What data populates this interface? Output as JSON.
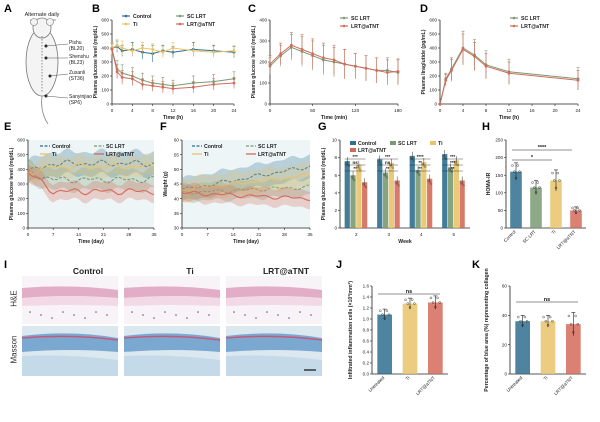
{
  "panels": {
    "A": "A",
    "B": "B",
    "C": "C",
    "D": "D",
    "E": "E",
    "F": "F",
    "G": "G",
    "H": "H",
    "I": "I",
    "J": "J",
    "K": "K"
  },
  "colors": {
    "control": "#2f6f8f",
    "sclrt": "#7a9a73",
    "ti": "#e8c36a",
    "lrt": "#d36b5a",
    "untreated": "#2f6f8f",
    "bg_e": "#cfe3e8",
    "bg_f": "#cfe3e8"
  },
  "schematic": {
    "top_label": "Alternate daily",
    "acupoints": [
      "Pishu",
      "(BL20)",
      "Shenshu",
      "(BL23)",
      "Zusanli",
      "(ST36)",
      "Sanyinjiao",
      "(SP6)"
    ]
  },
  "chart_data": [
    {
      "id": "B",
      "type": "line",
      "xlabel": "Time (h)",
      "ylabel": "Plasma glucose level (mg/dL)",
      "xlim": [
        0,
        24
      ],
      "ylim": [
        0,
        600
      ],
      "xticks": [
        "0",
        "4",
        "8",
        "12",
        "16",
        "20",
        "24"
      ],
      "yticks": [
        "0",
        "100",
        "200",
        "300",
        "400",
        "500",
        "600"
      ],
      "x": [
        0,
        1,
        2,
        4,
        6,
        8,
        10,
        12,
        16,
        20,
        24
      ],
      "series": [
        {
          "name": "Control",
          "color_key": "control",
          "values": [
            400,
            410,
            380,
            390,
            370,
            360,
            380,
            370,
            390,
            380,
            370
          ],
          "err": [
            40,
            40,
            40,
            50,
            50,
            60,
            40,
            40,
            50,
            40,
            40
          ]
        },
        {
          "name": "SC LRT",
          "color_key": "sclrt",
          "values": [
            390,
            250,
            220,
            200,
            170,
            150,
            140,
            130,
            150,
            160,
            180
          ],
          "err": [
            40,
            60,
            60,
            60,
            50,
            50,
            50,
            40,
            50,
            50,
            50
          ]
        },
        {
          "name": "Ti",
          "color_key": "ti",
          "values": [
            400,
            420,
            400,
            380,
            400,
            390,
            370,
            400,
            380,
            370,
            380
          ],
          "err": [
            40,
            40,
            50,
            40,
            40,
            40,
            40,
            40,
            40,
            40,
            40
          ]
        },
        {
          "name": "LRT@aTNT",
          "color_key": "lrt",
          "values": [
            390,
            230,
            190,
            180,
            140,
            130,
            120,
            110,
            120,
            140,
            150
          ],
          "err": [
            40,
            50,
            50,
            50,
            40,
            40,
            40,
            40,
            40,
            40,
            40
          ]
        }
      ]
    },
    {
      "id": "C",
      "type": "line",
      "xlabel": "Time (min)",
      "ylabel": "Plasma glucose level (mg/dL)",
      "xlim": [
        0,
        180
      ],
      "ylim": [
        0,
        400
      ],
      "xticks": [
        "0",
        "60",
        "120",
        "180"
      ],
      "yticks": [
        "0",
        "100",
        "200",
        "300",
        "400"
      ],
      "x": [
        0,
        15,
        30,
        45,
        60,
        75,
        90,
        105,
        120,
        135,
        150,
        165,
        180
      ],
      "series": [
        {
          "name": "SC LRT",
          "color_key": "sclrt",
          "values": [
            180,
            230,
            270,
            250,
            230,
            210,
            200,
            190,
            180,
            170,
            160,
            160,
            150
          ],
          "err": [
            40,
            50,
            60,
            70,
            70,
            70,
            70,
            70,
            60,
            60,
            60,
            60,
            60
          ]
        },
        {
          "name": "LRT@aTNT",
          "color_key": "lrt",
          "values": [
            190,
            240,
            280,
            260,
            240,
            220,
            210,
            190,
            180,
            170,
            160,
            150,
            155
          ],
          "err": [
            40,
            50,
            60,
            70,
            70,
            70,
            70,
            70,
            60,
            60,
            60,
            60,
            60
          ]
        }
      ]
    },
    {
      "id": "D",
      "type": "line",
      "xlabel": "Time (h)",
      "ylabel": "Plasma liraglutide (pg/mL)",
      "xlim": [
        0,
        24
      ],
      "ylim": [
        0,
        600
      ],
      "xticks": [
        "0",
        "4",
        "8",
        "12",
        "16",
        "20",
        "24"
      ],
      "yticks": [
        "0",
        "100",
        "200",
        "300",
        "400",
        "500",
        "600"
      ],
      "x": [
        0,
        1,
        2,
        4,
        6,
        8,
        12,
        24
      ],
      "series": [
        {
          "name": "SC LRT",
          "color_key": "sclrt",
          "values": [
            0,
            180,
            250,
            400,
            350,
            280,
            230,
            180
          ],
          "err": [
            0,
            40,
            80,
            120,
            110,
            100,
            90,
            80
          ]
        },
        {
          "name": "LRT@aTNT",
          "color_key": "lrt",
          "values": [
            0,
            170,
            240,
            390,
            340,
            270,
            220,
            170
          ],
          "err": [
            0,
            40,
            80,
            110,
            100,
            90,
            80,
            70
          ]
        }
      ]
    },
    {
      "id": "E",
      "type": "area",
      "xlabel": "Time (day)",
      "ylabel": "Plasma glucose level (mg/dL)",
      "xlim": [
        0,
        35
      ],
      "ylim": [
        0,
        600
      ],
      "xticks": [
        "0",
        "7",
        "14",
        "21",
        "28",
        "35"
      ],
      "yticks": [
        "0",
        "100",
        "200",
        "300",
        "400",
        "500",
        "600"
      ],
      "series": [
        {
          "name": "Control",
          "color_key": "control",
          "dash": true,
          "mean": 440,
          "band": 80
        },
        {
          "name": "SC LRT",
          "color_key": "sclrt",
          "dash": true,
          "mean": 330,
          "band": 70
        },
        {
          "name": "Ti",
          "color_key": "ti",
          "dash": false,
          "mean": 420,
          "band": 70
        },
        {
          "name": "LRT@aTNT",
          "color_key": "lrt",
          "dash": false,
          "mean": 250,
          "band": 60
        }
      ]
    },
    {
      "id": "F",
      "type": "area",
      "xlabel": "Time (day)",
      "ylabel": "Weight (g)",
      "xlim": [
        0,
        35
      ],
      "ylim": [
        30,
        60
      ],
      "xticks": [
        "0",
        "7",
        "14",
        "21",
        "28",
        "35"
      ],
      "yticks": [
        "30",
        "35",
        "40",
        "45",
        "50",
        "55",
        "60"
      ],
      "series": [
        {
          "name": "Control",
          "color_key": "control",
          "dash": true,
          "start": 43,
          "end": 51,
          "band": 4
        },
        {
          "name": "SC LRT",
          "color_key": "sclrt",
          "dash": true,
          "start": 42,
          "end": 44,
          "band": 3
        },
        {
          "name": "Ti",
          "color_key": "ti",
          "dash": false,
          "start": 43,
          "end": 48,
          "band": 4
        },
        {
          "name": "LRT@aTNT",
          "color_key": "lrt",
          "dash": false,
          "start": 42,
          "end": 40,
          "band": 3
        }
      ]
    },
    {
      "id": "G",
      "type": "bar",
      "xlabel": "Week",
      "ylabel": "Plasma glucose level (mg/dL)",
      "categories": [
        "2",
        "3",
        "4",
        "5"
      ],
      "ylim": [
        0,
        10
      ],
      "yticks": [
        "0",
        "2",
        "4",
        "6",
        "8",
        "10"
      ],
      "series": [
        {
          "name": "Control",
          "color_key": "control",
          "values": [
            7.6,
            7.8,
            8.2,
            8.4
          ]
        },
        {
          "name": "SC LRT",
          "color_key": "sclrt",
          "values": [
            6.0,
            6.3,
            6.6,
            6.9
          ]
        },
        {
          "name": "Ti",
          "color_key": "ti",
          "values": [
            7.2,
            7.4,
            7.5,
            7.7
          ]
        },
        {
          "name": "LRT@aTNT",
          "color_key": "lrt",
          "values": [
            5.2,
            5.4,
            5.6,
            5.4
          ]
        }
      ],
      "sig": [
        "***",
        "ns",
        "**",
        "***",
        "ns",
        "**",
        "****",
        "**",
        "**",
        "***",
        "***",
        "**"
      ]
    },
    {
      "id": "H",
      "type": "bar",
      "ylabel": "HOMA-IR",
      "categories": [
        "Control",
        "SC LRT",
        "Ti",
        "LRT@aTNT"
      ],
      "ylim": [
        0,
        250
      ],
      "yticks": [
        "0",
        "50",
        "100",
        "150",
        "200",
        "250"
      ],
      "values": [
        160,
        115,
        135,
        50
      ],
      "err": [
        25,
        20,
        30,
        10
      ],
      "color_keys": [
        "control",
        "sclrt",
        "ti",
        "lrt"
      ],
      "sig": [
        "*",
        "****"
      ]
    },
    {
      "id": "J",
      "type": "bar",
      "ylabel": "Infiltrated inflammation cells (×10³/mm²)",
      "categories": [
        "Untreated",
        "Ti",
        "LRT@aTNT"
      ],
      "ylim": [
        0,
        1.6
      ],
      "yticks": [
        "0.0",
        "0.2",
        "0.4",
        "0.6",
        "0.8",
        "1.0",
        "1.2",
        "1.4",
        "1.6"
      ],
      "values": [
        1.08,
        1.28,
        1.3
      ],
      "err": [
        0.1,
        0.1,
        0.12
      ],
      "color_keys": [
        "untreated",
        "ti",
        "lrt"
      ],
      "sig": [
        "ns"
      ]
    },
    {
      "id": "K",
      "type": "bar",
      "ylabel": "Percentage of blue area (%) representing collagen",
      "categories": [
        "Untreated",
        "Ti",
        "LRT@aTNT"
      ],
      "ylim": [
        0,
        60
      ],
      "yticks": [
        "0",
        "20",
        "40",
        "60"
      ],
      "values": [
        36,
        36,
        34
      ],
      "err": [
        4,
        4,
        8
      ],
      "color_keys": [
        "untreated",
        "ti",
        "lrt"
      ],
      "sig": [
        "ns"
      ]
    }
  ],
  "histology": {
    "columns": [
      "Control",
      "Ti",
      "LRT@aTNT"
    ],
    "rows": [
      "H&E",
      "Masson"
    ]
  }
}
